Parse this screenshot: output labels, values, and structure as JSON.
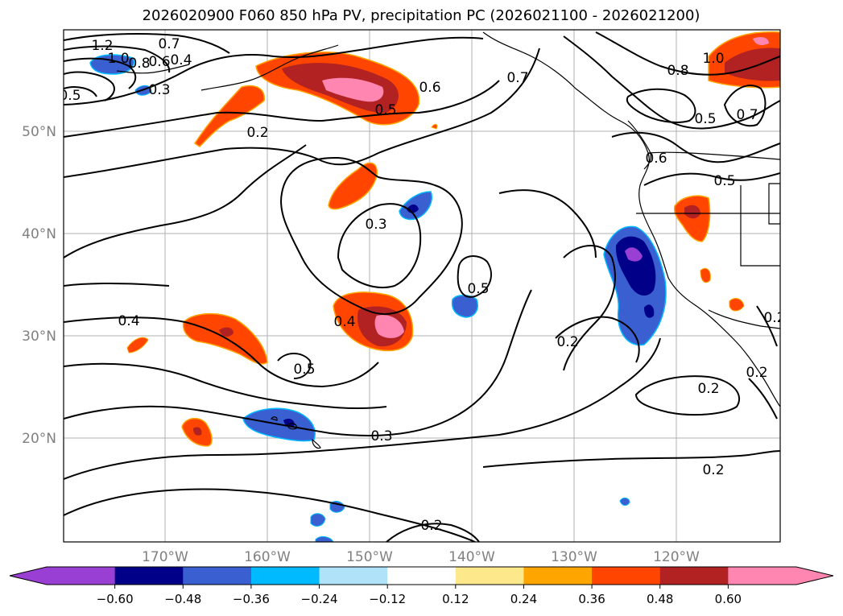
{
  "title": "2026020900 F060 850 hPa PV, precipitation PC (2026021100 - 2026021200)",
  "lat_labels": [
    "50°N",
    "40°N",
    "30°N",
    "20°N"
  ],
  "lon_labels": [
    "170°W",
    "160°W",
    "150°W",
    "140°W",
    "130°W",
    "120°W"
  ],
  "contour_labels": [
    "1.2",
    "1.0",
    "0.8",
    "0.7",
    "0.6",
    "0.4",
    "0.3",
    "0.5",
    "0.2",
    "0.6",
    "0.7",
    "0.5",
    "0.3",
    "0.5",
    "0.4",
    "0.4",
    "0.5",
    "0.3",
    "0.2",
    "1.0",
    "0.8",
    "0.5",
    "0.7",
    "0.6",
    "0.5",
    "0.2",
    "0.2",
    "0.2",
    "0.2",
    "0.2"
  ],
  "colorbar": {
    "ticks": [
      "−0.60",
      "−0.48",
      "−0.36",
      "−0.24",
      "−0.12",
      "0.12",
      "0.24",
      "0.36",
      "0.48",
      "0.60"
    ],
    "colors": [
      "#9a3fd4",
      "#000088",
      "#3a5fd0",
      "#00baff",
      "#b0e2fa",
      "#ffffff",
      "#fde98c",
      "#ffa500",
      "#ff4500",
      "#b22222",
      "#ff86b0"
    ],
    "under_color": "#9a3fd4",
    "over_color": "#ff86b0"
  }
}
